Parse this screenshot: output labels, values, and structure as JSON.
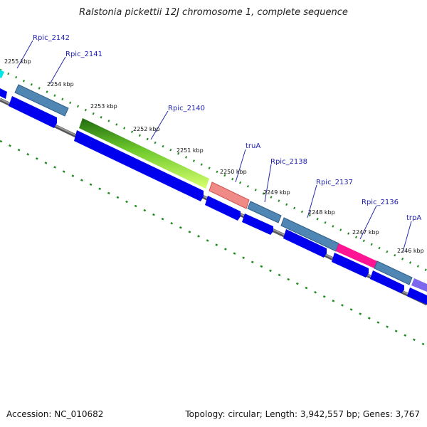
{
  "title": "Ralstonia pickettii 12J chromosome 1, complete sequence",
  "footer": {
    "accession": "Accession: NC_010682",
    "summary": "Topology: circular; Length: 3,942,557 bp; Genes: 3,767"
  },
  "kbp_ticks": [
    "2255 kbp",
    "2254 kbp",
    "2253 kbp",
    "2252 kbp",
    "2251 kbp",
    "2250 kbp",
    "2249 kbp",
    "2248 kbp",
    "2247 kbp",
    "2246 kbp"
  ],
  "gene_labels": [
    "Rpic_2142",
    "Rpic_2141",
    "Rpic_2140",
    "truA",
    "Rpic_2138",
    "Rpic_2137",
    "Rpic_2136",
    "trpA"
  ],
  "colors": {
    "backbone": "#808080",
    "cds_arrow": "#0000ee",
    "gene_steelblue": "#4f86b3",
    "gene_green": "#2e8b1e",
    "gene_salmon": "#f08080",
    "gene_pink": "#ff1493",
    "gene_purple": "#7b68ee",
    "gene_cyan": "#00ffff",
    "tick_green": "#228b22",
    "label_blue": "#1f1fb0"
  }
}
